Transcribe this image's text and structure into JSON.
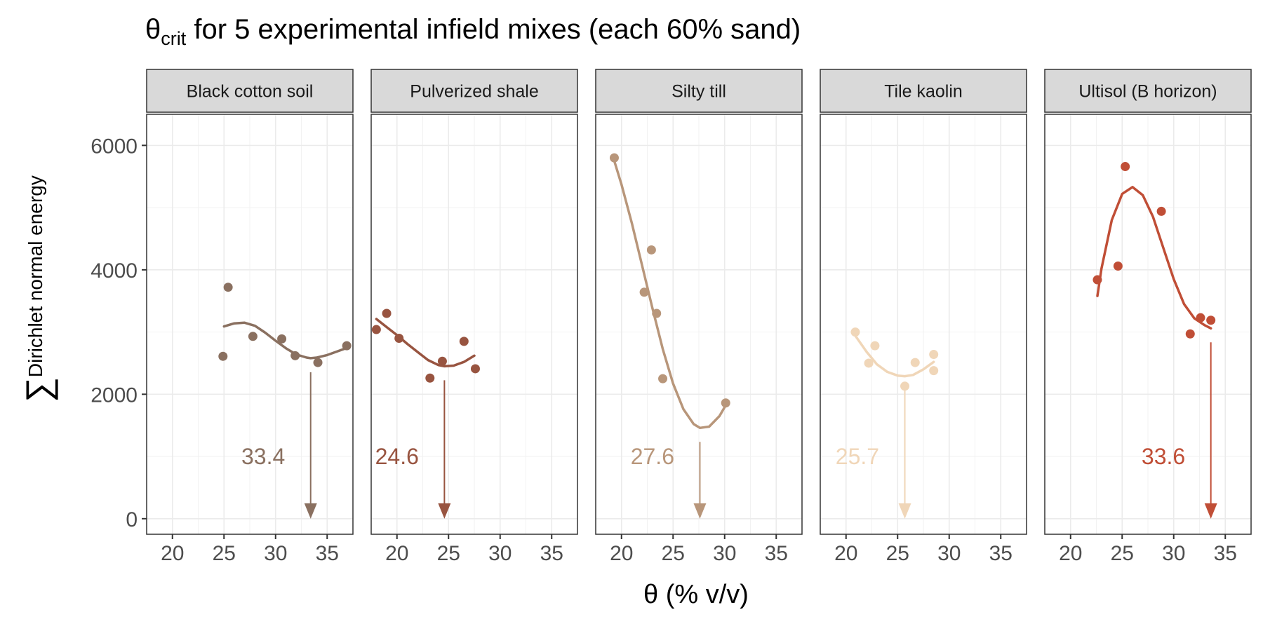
{
  "chart_data": {
    "type": "scatter",
    "title": {
      "symbol": "θ",
      "subscript": "crit",
      "text": " for 5 experimental infield mixes (each 60% sand)"
    },
    "xlabel": "θ (% v/v)",
    "ylabel": {
      "symbol": "∑",
      "subscript": "Dirichlet normal energy"
    },
    "xlim": [
      17.5,
      37.5
    ],
    "ylim": [
      -250,
      6500
    ],
    "x_ticks": [
      20,
      25,
      30,
      35
    ],
    "y_ticks": [
      0,
      2000,
      4000,
      6000
    ],
    "grid": true,
    "facets": [
      {
        "name": "Black cotton soil",
        "color": "#8a7060",
        "critical_theta": 33.4,
        "critical_label": "33.4",
        "points": [
          {
            "x": 24.9,
            "y": 2610
          },
          {
            "x": 25.4,
            "y": 3720
          },
          {
            "x": 27.8,
            "y": 2930
          },
          {
            "x": 30.6,
            "y": 2890
          },
          {
            "x": 31.9,
            "y": 2620
          },
          {
            "x": 34.1,
            "y": 2510
          },
          {
            "x": 36.9,
            "y": 2780
          }
        ],
        "fit": [
          {
            "x": 25.0,
            "y": 3090
          },
          {
            "x": 26.0,
            "y": 3140
          },
          {
            "x": 27.0,
            "y": 3150
          },
          {
            "x": 28.0,
            "y": 3100
          },
          {
            "x": 29.0,
            "y": 2990
          },
          {
            "x": 30.0,
            "y": 2860
          },
          {
            "x": 31.0,
            "y": 2740
          },
          {
            "x": 32.0,
            "y": 2640
          },
          {
            "x": 33.0,
            "y": 2590
          },
          {
            "x": 33.4,
            "y": 2580
          },
          {
            "x": 34.0,
            "y": 2590
          },
          {
            "x": 35.0,
            "y": 2630
          },
          {
            "x": 36.0,
            "y": 2690
          },
          {
            "x": 37.0,
            "y": 2750
          }
        ]
      },
      {
        "name": "Pulverized shale",
        "color": "#985440",
        "critical_theta": 24.6,
        "critical_label": "24.6",
        "points": [
          {
            "x": 18.0,
            "y": 3040
          },
          {
            "x": 19.0,
            "y": 3300
          },
          {
            "x": 20.2,
            "y": 2900
          },
          {
            "x": 23.2,
            "y": 2260
          },
          {
            "x": 24.4,
            "y": 2530
          },
          {
            "x": 26.5,
            "y": 2850
          },
          {
            "x": 27.6,
            "y": 2410
          }
        ],
        "fit": [
          {
            "x": 18.0,
            "y": 3210
          },
          {
            "x": 19.0,
            "y": 3080
          },
          {
            "x": 20.0,
            "y": 2950
          },
          {
            "x": 21.0,
            "y": 2810
          },
          {
            "x": 22.0,
            "y": 2680
          },
          {
            "x": 23.0,
            "y": 2550
          },
          {
            "x": 24.0,
            "y": 2470
          },
          {
            "x": 24.6,
            "y": 2450
          },
          {
            "x": 25.5,
            "y": 2460
          },
          {
            "x": 26.5,
            "y": 2520
          },
          {
            "x": 27.5,
            "y": 2620
          }
        ]
      },
      {
        "name": "Silty till",
        "color": "#b8967a",
        "critical_theta": 27.6,
        "critical_label": "27.6",
        "points": [
          {
            "x": 19.3,
            "y": 5800
          },
          {
            "x": 22.2,
            "y": 3640
          },
          {
            "x": 22.9,
            "y": 4320
          },
          {
            "x": 23.4,
            "y": 3300
          },
          {
            "x": 24.0,
            "y": 2250
          },
          {
            "x": 30.1,
            "y": 1860
          }
        ],
        "fit": [
          {
            "x": 19.3,
            "y": 5750
          },
          {
            "x": 20.0,
            "y": 5370
          },
          {
            "x": 21.0,
            "y": 4750
          },
          {
            "x": 22.0,
            "y": 4070
          },
          {
            "x": 23.0,
            "y": 3380
          },
          {
            "x": 24.0,
            "y": 2730
          },
          {
            "x": 25.0,
            "y": 2170
          },
          {
            "x": 26.0,
            "y": 1760
          },
          {
            "x": 27.0,
            "y": 1520
          },
          {
            "x": 27.6,
            "y": 1460
          },
          {
            "x": 28.5,
            "y": 1480
          },
          {
            "x": 29.5,
            "y": 1650
          },
          {
            "x": 30.1,
            "y": 1820
          }
        ]
      },
      {
        "name": "Tile kaolin",
        "color": "#f0d6b8",
        "critical_theta": 25.7,
        "critical_label": "25.7",
        "points": [
          {
            "x": 20.9,
            "y": 3000
          },
          {
            "x": 22.2,
            "y": 2500
          },
          {
            "x": 22.8,
            "y": 2780
          },
          {
            "x": 25.7,
            "y": 2130
          },
          {
            "x": 26.7,
            "y": 2510
          },
          {
            "x": 28.5,
            "y": 2640
          },
          {
            "x": 28.5,
            "y": 2380
          }
        ],
        "fit": [
          {
            "x": 20.9,
            "y": 2940
          },
          {
            "x": 22.0,
            "y": 2680
          },
          {
            "x": 23.0,
            "y": 2480
          },
          {
            "x": 24.0,
            "y": 2360
          },
          {
            "x": 25.0,
            "y": 2300
          },
          {
            "x": 25.7,
            "y": 2290
          },
          {
            "x": 26.5,
            "y": 2310
          },
          {
            "x": 27.5,
            "y": 2400
          },
          {
            "x": 28.5,
            "y": 2520
          }
        ]
      },
      {
        "name": "Ultisol (B horizon)",
        "color": "#c04e36",
        "critical_theta": 33.6,
        "critical_label": "33.6",
        "points": [
          {
            "x": 22.6,
            "y": 3840
          },
          {
            "x": 24.6,
            "y": 4060
          },
          {
            "x": 25.3,
            "y": 5660
          },
          {
            "x": 28.8,
            "y": 4940
          },
          {
            "x": 31.6,
            "y": 2970
          },
          {
            "x": 32.6,
            "y": 3230
          },
          {
            "x": 33.6,
            "y": 3190
          }
        ],
        "fit": [
          {
            "x": 22.6,
            "y": 3580
          },
          {
            "x": 23.0,
            "y": 4020
          },
          {
            "x": 24.0,
            "y": 4800
          },
          {
            "x": 25.0,
            "y": 5220
          },
          {
            "x": 26.0,
            "y": 5330
          },
          {
            "x": 27.0,
            "y": 5200
          },
          {
            "x": 28.0,
            "y": 4850
          },
          {
            "x": 29.0,
            "y": 4350
          },
          {
            "x": 30.0,
            "y": 3850
          },
          {
            "x": 31.0,
            "y": 3450
          },
          {
            "x": 32.0,
            "y": 3220
          },
          {
            "x": 33.0,
            "y": 3110
          },
          {
            "x": 33.6,
            "y": 3060
          }
        ]
      }
    ]
  }
}
